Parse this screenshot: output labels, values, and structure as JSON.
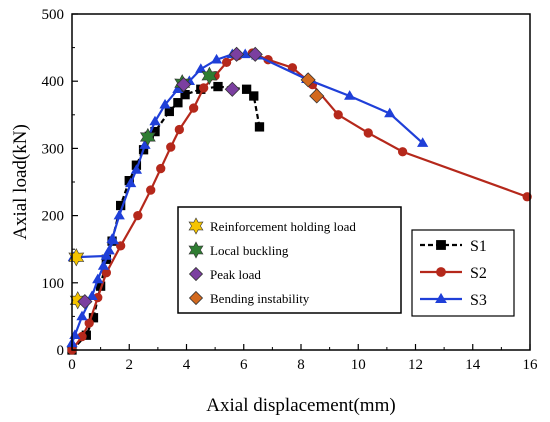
{
  "chart_data": {
    "type": "line",
    "xlabel": "Axial displacement(mm)",
    "ylabel": "Axial load(kN)",
    "xlim": [
      0,
      16
    ],
    "ylim": [
      0,
      500
    ],
    "xticks": [
      "0",
      "2",
      "4",
      "6",
      "8",
      "10",
      "12",
      "14",
      "16"
    ],
    "yticks": [
      "0",
      "100",
      "200",
      "300",
      "400",
      "500"
    ],
    "grid": false,
    "series": [
      {
        "name": "S1",
        "color": "#000000",
        "marker": "square",
        "dash": true,
        "points": [
          [
            0,
            0
          ],
          [
            0.5,
            22
          ],
          [
            0.75,
            48
          ],
          [
            1.0,
            95
          ],
          [
            1.2,
            135
          ],
          [
            1.4,
            162
          ],
          [
            1.7,
            215
          ],
          [
            2.0,
            252
          ],
          [
            2.25,
            275
          ],
          [
            2.5,
            298
          ],
          [
            2.7,
            318
          ],
          [
            2.9,
            325
          ],
          [
            3.4,
            355
          ],
          [
            3.7,
            368
          ],
          [
            3.95,
            380
          ],
          [
            4.5,
            388
          ],
          [
            5.1,
            392
          ],
          [
            6.1,
            388
          ],
          [
            6.35,
            378
          ],
          [
            6.55,
            332
          ]
        ]
      },
      {
        "name": "S2",
        "color": "#b5281b",
        "marker": "circle",
        "dash": false,
        "points": [
          [
            0,
            0
          ],
          [
            0.35,
            20
          ],
          [
            0.6,
            40
          ],
          [
            0.9,
            78
          ],
          [
            1.2,
            115
          ],
          [
            1.7,
            155
          ],
          [
            2.3,
            200
          ],
          [
            2.75,
            238
          ],
          [
            3.1,
            270
          ],
          [
            3.45,
            302
          ],
          [
            3.75,
            328
          ],
          [
            4.25,
            360
          ],
          [
            4.6,
            390
          ],
          [
            5.0,
            408
          ],
          [
            5.4,
            428
          ],
          [
            5.8,
            438
          ],
          [
            6.3,
            442
          ],
          [
            6.85,
            432
          ],
          [
            7.7,
            420
          ],
          [
            8.4,
            395
          ],
          [
            9.3,
            350
          ],
          [
            10.35,
            323
          ],
          [
            11.55,
            295
          ],
          [
            15.9,
            228
          ]
        ]
      },
      {
        "name": "S3",
        "color": "#1f3fd8",
        "marker": "triangle",
        "dash": false,
        "points": [
          [
            0,
            10
          ],
          [
            0.1,
            22
          ],
          [
            0.35,
            50
          ],
          [
            0.7,
            80
          ],
          [
            0.9,
            105
          ],
          [
            1.1,
            125
          ],
          [
            1.3,
            148
          ],
          [
            1.4,
            165
          ],
          [
            1.65,
            200
          ],
          [
            2.05,
            248
          ],
          [
            2.25,
            268
          ],
          [
            2.55,
            305
          ],
          [
            2.9,
            340
          ],
          [
            3.25,
            365
          ],
          [
            3.7,
            388
          ],
          [
            4.1,
            400
          ],
          [
            4.5,
            418
          ],
          [
            5.05,
            432
          ],
          [
            5.6,
            440
          ],
          [
            6.05,
            440
          ],
          [
            6.45,
            438
          ],
          [
            8.2,
            403
          ],
          [
            9.7,
            378
          ],
          [
            11.1,
            352
          ],
          [
            12.25,
            308
          ]
        ]
      },
      {
        "name": "S3 initial plateau",
        "color": "#1f3fd8",
        "marker": "triangle",
        "dash": false,
        "in_legend": false,
        "points": [
          [
            0.05,
            138
          ],
          [
            1.2,
            140
          ],
          [
            1.45,
            163
          ]
        ]
      }
    ],
    "events": [
      {
        "name": "Reinforcement holding load",
        "color": "#f5c400",
        "marker": "star",
        "points": [
          [
            0.2,
            74
          ],
          [
            0.15,
            138
          ]
        ]
      },
      {
        "name": "Local buckling",
        "color": "#2f7d32",
        "marker": "star",
        "points": [
          [
            2.65,
            317
          ],
          [
            3.85,
            397
          ],
          [
            4.8,
            408
          ]
        ]
      },
      {
        "name": "Peak load",
        "color": "#7b3fa0",
        "marker": "diamond",
        "points": [
          [
            0.45,
            72
          ],
          [
            3.9,
            395
          ],
          [
            5.6,
            388
          ],
          [
            5.75,
            440
          ],
          [
            6.4,
            440
          ]
        ]
      },
      {
        "name": "Bending instability",
        "color": "#d2691e",
        "marker": "diamond",
        "points": [
          [
            8.25,
            402
          ],
          [
            8.55,
            378
          ]
        ]
      }
    ],
    "legend_events_position": "center",
    "legend_series_position": "lower-right"
  }
}
